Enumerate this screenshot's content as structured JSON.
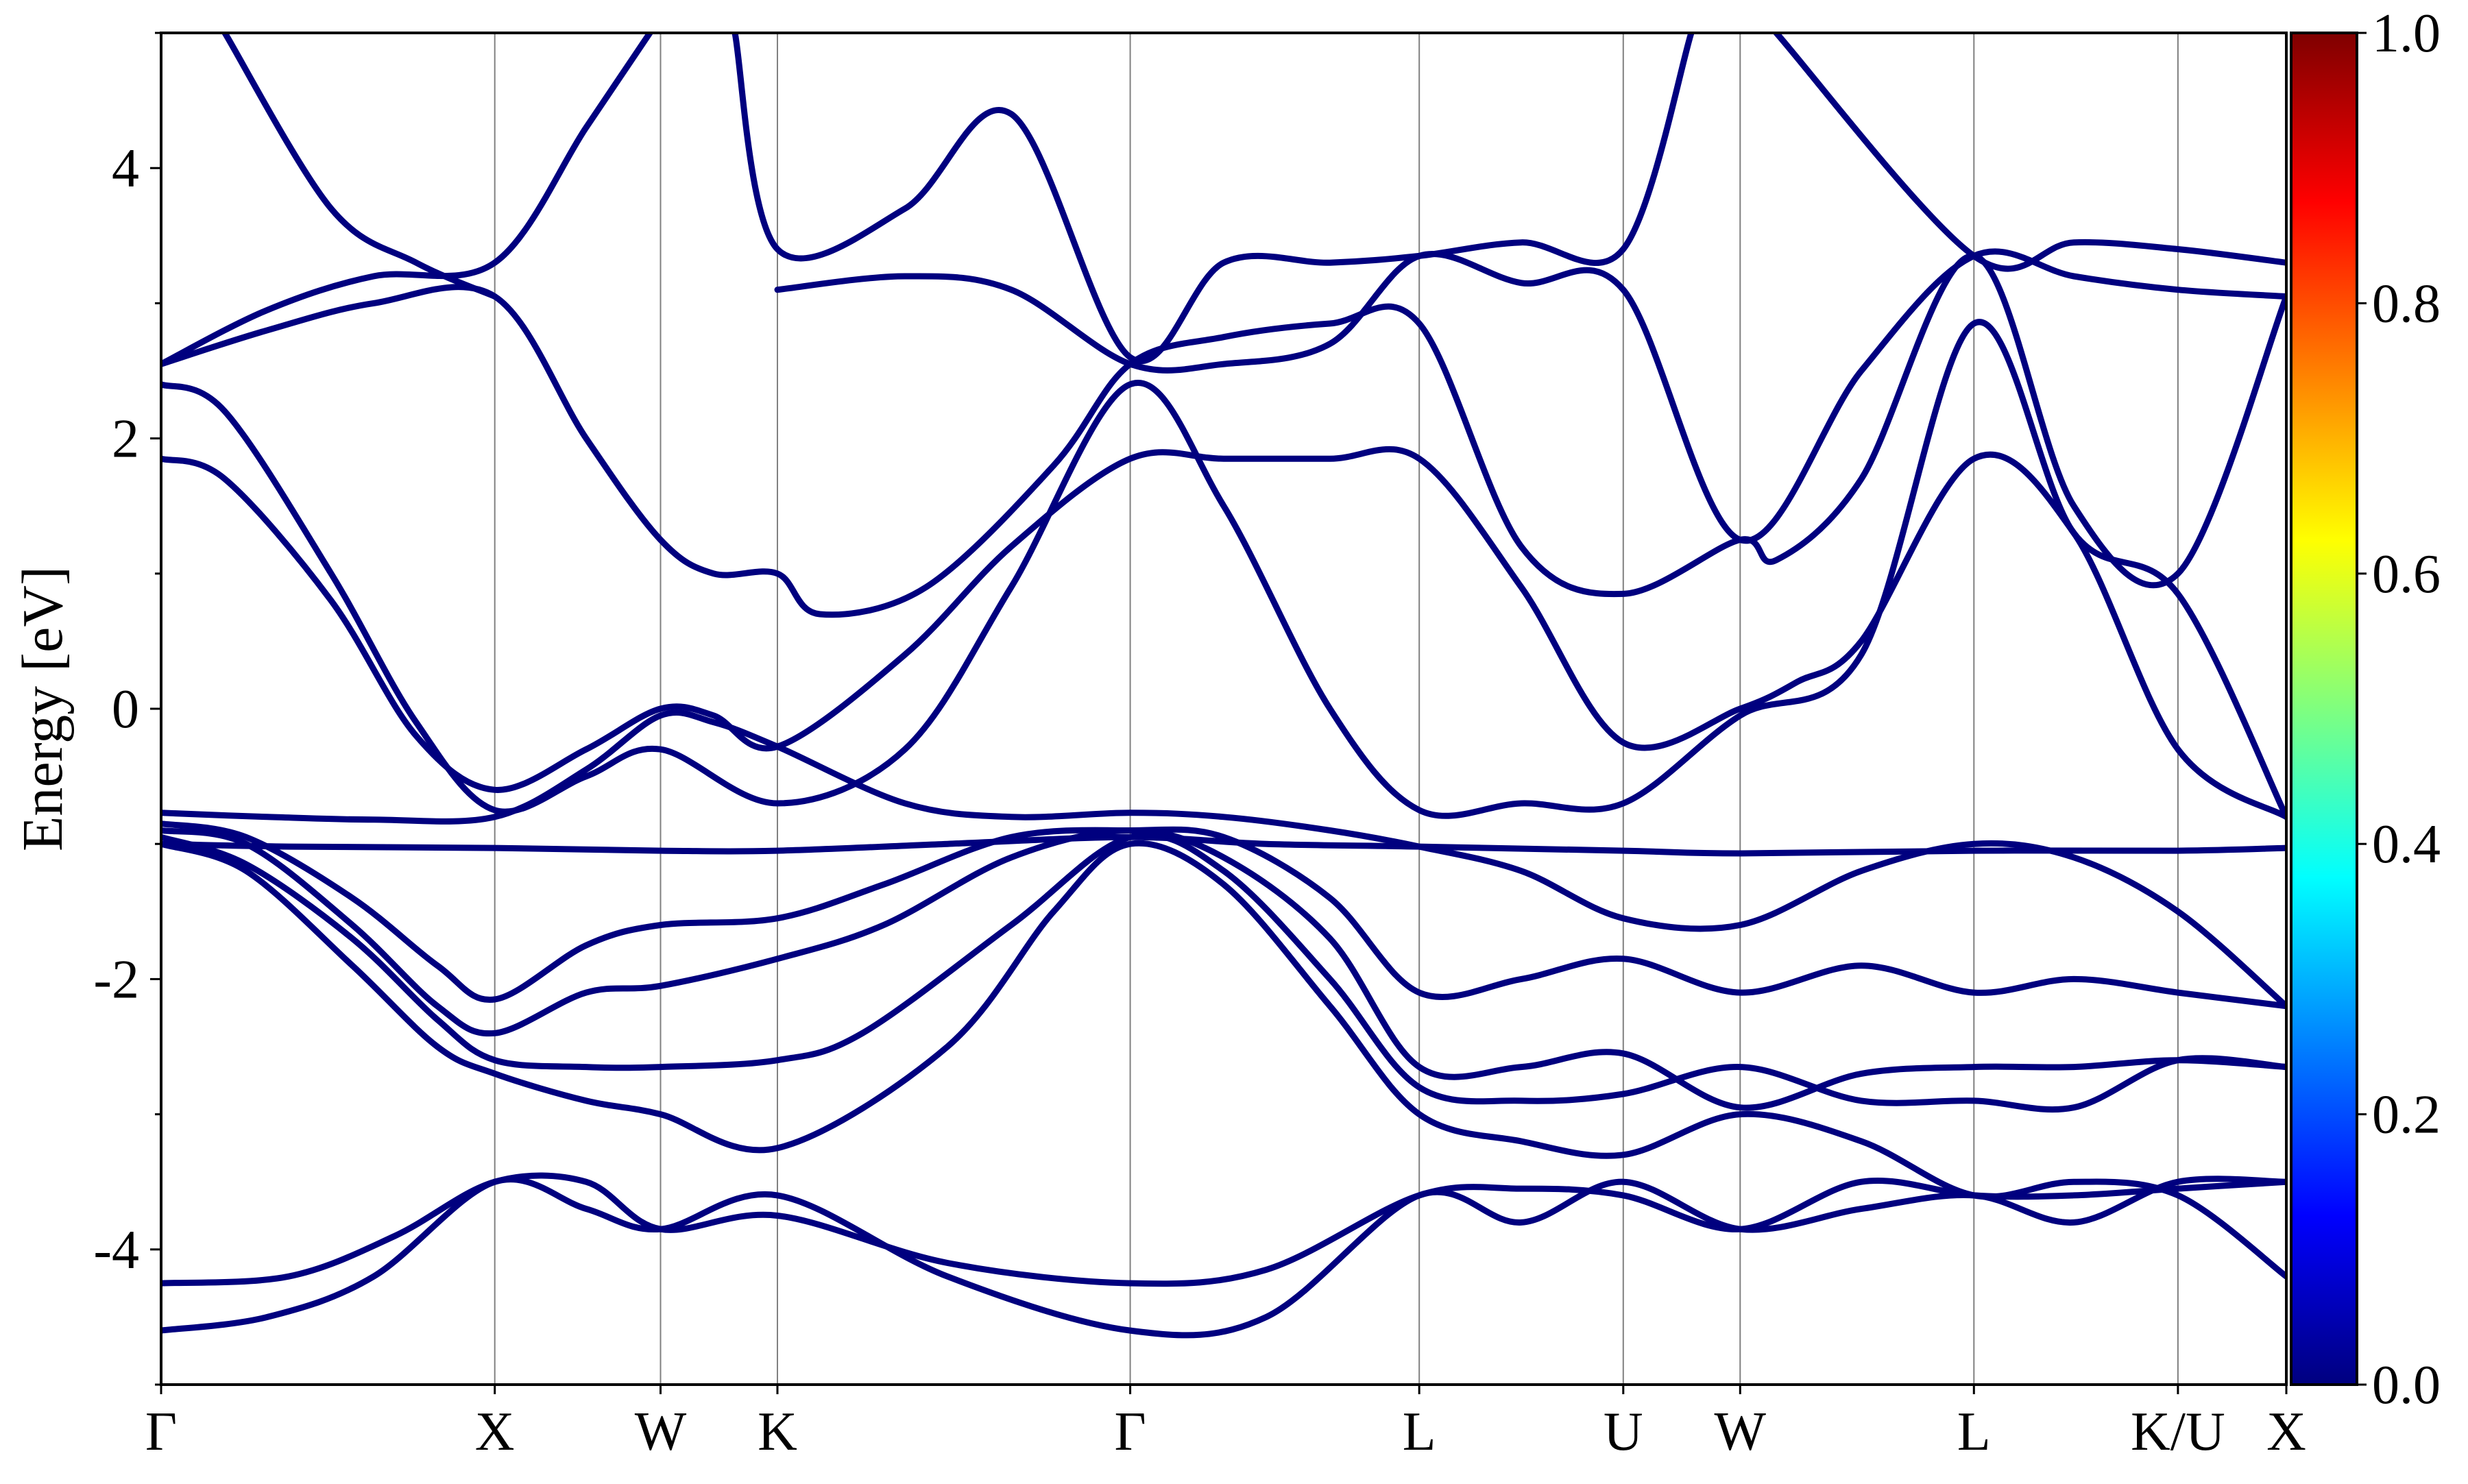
{
  "chart_data": {
    "type": "line",
    "title": "",
    "ylabel": "Energy [eV]",
    "xlabel": "",
    "ylim": [
      -5,
      5
    ],
    "y_ticks": [
      "4",
      "2",
      "0",
      "-2",
      "-4"
    ],
    "grid": "vertical lines at high-symmetry points",
    "kpoints": [
      {
        "label": "Γ",
        "x": 0.0
      },
      {
        "label": "X",
        "x": 0.157
      },
      {
        "label": "W",
        "x": 0.235
      },
      {
        "label": "K",
        "x": 0.29
      },
      {
        "label": "Γ",
        "x": 0.456
      },
      {
        "label": "L",
        "x": 0.592
      },
      {
        "label": "U",
        "x": 0.688
      },
      {
        "label": "W",
        "x": 0.743
      },
      {
        "label": "L",
        "x": 0.853
      },
      {
        "label": "K/U",
        "x": 0.949
      },
      {
        "label": "X",
        "x": 1.0
      }
    ],
    "band_color_value": 0.0,
    "colorbar": {
      "min": 0.0,
      "max": 1.0,
      "ticks": [
        "0.0",
        "0.2",
        "0.4",
        "0.6",
        "0.8",
        "1.0"
      ],
      "colormap": "jet",
      "colors": [
        "#00007f",
        "#0000ff",
        "#007fff",
        "#00ffff",
        "#7fff7f",
        "#ffff00",
        "#ff7f00",
        "#ff0000",
        "#7f0000"
      ]
    },
    "series": [
      {
        "values": [
          [
            0.0,
            -4.6
          ],
          [
            0.05,
            -4.5
          ],
          [
            0.1,
            -4.2
          ],
          [
            0.157,
            -3.5
          ],
          [
            0.2,
            -3.7
          ],
          [
            0.235,
            -3.85
          ],
          [
            0.29,
            -3.6
          ],
          [
            0.37,
            -4.2
          ],
          [
            0.456,
            -4.6
          ],
          [
            0.52,
            -4.5
          ],
          [
            0.592,
            -3.6
          ],
          [
            0.64,
            -3.8
          ],
          [
            0.688,
            -3.5
          ],
          [
            0.743,
            -3.85
          ],
          [
            0.8,
            -3.7
          ],
          [
            0.853,
            -3.6
          ],
          [
            0.9,
            -3.8
          ],
          [
            0.949,
            -3.5
          ],
          [
            1.0,
            -3.5
          ]
        ]
      },
      {
        "values": [
          [
            0.0,
            -4.25
          ],
          [
            0.06,
            -4.2
          ],
          [
            0.11,
            -3.9
          ],
          [
            0.157,
            -3.5
          ],
          [
            0.2,
            -3.5
          ],
          [
            0.235,
            -3.85
          ],
          [
            0.29,
            -3.75
          ],
          [
            0.37,
            -4.1
          ],
          [
            0.456,
            -4.25
          ],
          [
            0.52,
            -4.15
          ],
          [
            0.592,
            -3.6
          ],
          [
            0.64,
            -3.55
          ],
          [
            0.688,
            -3.6
          ],
          [
            0.743,
            -3.85
          ],
          [
            0.8,
            -3.5
          ],
          [
            0.853,
            -3.6
          ],
          [
            0.9,
            -3.6
          ],
          [
            0.949,
            -3.55
          ],
          [
            1.0,
            -3.5
          ]
        ]
      },
      {
        "values": [
          [
            0.0,
            -1.0
          ],
          [
            0.04,
            -1.2
          ],
          [
            0.09,
            -1.9
          ],
          [
            0.13,
            -2.5
          ],
          [
            0.157,
            -2.7
          ],
          [
            0.2,
            -2.9
          ],
          [
            0.235,
            -3.0
          ],
          [
            0.29,
            -3.25
          ],
          [
            0.37,
            -2.5
          ],
          [
            0.42,
            -1.5
          ],
          [
            0.456,
            -1.0
          ],
          [
            0.5,
            -1.3
          ],
          [
            0.55,
            -2.2
          ],
          [
            0.592,
            -3.0
          ],
          [
            0.64,
            -3.2
          ],
          [
            0.688,
            -3.3
          ],
          [
            0.743,
            -3.0
          ],
          [
            0.8,
            -3.2
          ],
          [
            0.853,
            -3.6
          ],
          [
            0.9,
            -3.5
          ],
          [
            0.949,
            -3.6
          ],
          [
            1.0,
            -4.2
          ]
        ]
      },
      {
        "values": [
          [
            0.0,
            -0.95
          ],
          [
            0.04,
            -1.15
          ],
          [
            0.09,
            -1.7
          ],
          [
            0.13,
            -2.3
          ],
          [
            0.157,
            -2.6
          ],
          [
            0.2,
            -2.65
          ],
          [
            0.235,
            -2.65
          ],
          [
            0.29,
            -2.6
          ],
          [
            0.33,
            -2.4
          ],
          [
            0.4,
            -1.6
          ],
          [
            0.456,
            -0.95
          ],
          [
            0.5,
            -1.2
          ],
          [
            0.55,
            -2.0
          ],
          [
            0.592,
            -2.8
          ],
          [
            0.64,
            -2.9
          ],
          [
            0.688,
            -2.85
          ],
          [
            0.743,
            -2.65
          ],
          [
            0.8,
            -2.9
          ],
          [
            0.853,
            -2.9
          ],
          [
            0.9,
            -2.95
          ],
          [
            0.949,
            -2.6
          ],
          [
            1.0,
            -2.65
          ]
        ]
      },
      {
        "values": [
          [
            0.0,
            -0.9
          ],
          [
            0.04,
            -1.0
          ],
          [
            0.09,
            -1.6
          ],
          [
            0.13,
            -2.2
          ],
          [
            0.157,
            -2.4
          ],
          [
            0.2,
            -2.1
          ],
          [
            0.235,
            -2.05
          ],
          [
            0.29,
            -1.85
          ],
          [
            0.34,
            -1.6
          ],
          [
            0.4,
            -1.1
          ],
          [
            0.456,
            -0.9
          ],
          [
            0.5,
            -1.1
          ],
          [
            0.55,
            -1.7
          ],
          [
            0.592,
            -2.65
          ],
          [
            0.64,
            -2.65
          ],
          [
            0.688,
            -2.55
          ],
          [
            0.743,
            -2.95
          ],
          [
            0.8,
            -2.7
          ],
          [
            0.853,
            -2.65
          ],
          [
            0.9,
            -2.65
          ],
          [
            0.949,
            -2.6
          ],
          [
            1.0,
            -2.65
          ]
        ]
      },
      {
        "values": [
          [
            0.0,
            -0.85
          ],
          [
            0.04,
            -0.95
          ],
          [
            0.09,
            -1.4
          ],
          [
            0.13,
            -1.9
          ],
          [
            0.157,
            -2.15
          ],
          [
            0.2,
            -1.75
          ],
          [
            0.235,
            -1.6
          ],
          [
            0.29,
            -1.55
          ],
          [
            0.34,
            -1.3
          ],
          [
            0.4,
            -0.95
          ],
          [
            0.456,
            -0.9
          ],
          [
            0.5,
            -0.95
          ],
          [
            0.55,
            -1.4
          ],
          [
            0.592,
            -2.1
          ],
          [
            0.64,
            -2.0
          ],
          [
            0.688,
            -1.85
          ],
          [
            0.743,
            -2.1
          ],
          [
            0.8,
            -1.9
          ],
          [
            0.853,
            -2.1
          ],
          [
            0.9,
            -2.0
          ],
          [
            0.949,
            -2.1
          ],
          [
            1.0,
            -2.2
          ]
        ]
      },
      {
        "values": [
          [
            0.0,
            -0.77
          ],
          [
            0.05,
            -0.8
          ],
          [
            0.1,
            -0.82
          ],
          [
            0.157,
            -0.8
          ],
          [
            0.2,
            -0.45
          ],
          [
            0.235,
            -0.05
          ],
          [
            0.26,
            -0.1
          ],
          [
            0.29,
            -0.28
          ],
          [
            0.35,
            -0.7
          ],
          [
            0.4,
            -0.8
          ],
          [
            0.456,
            -0.77
          ],
          [
            0.5,
            -0.8
          ],
          [
            0.55,
            -0.9
          ],
          [
            0.592,
            -1.02
          ],
          [
            0.64,
            -1.2
          ],
          [
            0.688,
            -1.55
          ],
          [
            0.743,
            -1.6
          ],
          [
            0.8,
            -1.2
          ],
          [
            0.853,
            -1.0
          ],
          [
            0.9,
            -1.1
          ],
          [
            0.949,
            -1.5
          ],
          [
            1.0,
            -2.2
          ]
        ]
      },
      {
        "values": [
          [
            0.0,
            -1.0
          ],
          [
            0.06,
            -1.02
          ],
          [
            0.157,
            -1.03
          ],
          [
            0.235,
            -1.05
          ],
          [
            0.29,
            -1.05
          ],
          [
            0.37,
            -1.0
          ],
          [
            0.456,
            -0.95
          ],
          [
            0.52,
            -1.0
          ],
          [
            0.592,
            -1.02
          ],
          [
            0.688,
            -1.05
          ],
          [
            0.743,
            -1.07
          ],
          [
            0.853,
            -1.05
          ],
          [
            0.949,
            -1.05
          ],
          [
            1.0,
            -1.03
          ]
        ]
      },
      {
        "values": [
          [
            0.0,
            1.85
          ],
          [
            0.03,
            1.7
          ],
          [
            0.08,
            0.8
          ],
          [
            0.12,
            -0.2
          ],
          [
            0.157,
            -0.6
          ],
          [
            0.2,
            -0.3
          ],
          [
            0.235,
            0.0
          ],
          [
            0.26,
            -0.05
          ],
          [
            0.29,
            -0.28
          ],
          [
            0.35,
            0.4
          ],
          [
            0.4,
            1.2
          ],
          [
            0.456,
            1.85
          ],
          [
            0.5,
            1.85
          ],
          [
            0.55,
            1.85
          ],
          [
            0.592,
            1.85
          ],
          [
            0.64,
            0.9
          ],
          [
            0.688,
            -0.25
          ],
          [
            0.743,
            0.0
          ],
          [
            0.77,
            0.2
          ],
          [
            0.8,
            0.5
          ],
          [
            0.853,
            1.85
          ],
          [
            0.9,
            1.3
          ],
          [
            0.949,
            -0.3
          ],
          [
            1.0,
            -0.8
          ]
        ]
      },
      {
        "values": [
          [
            0.0,
            2.4
          ],
          [
            0.03,
            2.2
          ],
          [
            0.08,
            1.0
          ],
          [
            0.12,
            -0.1
          ],
          [
            0.157,
            -0.75
          ],
          [
            0.2,
            -0.5
          ],
          [
            0.235,
            -0.3
          ],
          [
            0.29,
            -0.7
          ],
          [
            0.35,
            -0.3
          ],
          [
            0.4,
            0.9
          ],
          [
            0.456,
            2.4
          ],
          [
            0.5,
            1.5
          ],
          [
            0.55,
            0.0
          ],
          [
            0.592,
            -0.75
          ],
          [
            0.64,
            -0.7
          ],
          [
            0.688,
            -0.7
          ],
          [
            0.743,
            -0.05
          ],
          [
            0.8,
            0.4
          ],
          [
            0.853,
            2.85
          ],
          [
            0.9,
            1.3
          ],
          [
            0.949,
            0.85
          ],
          [
            1.0,
            -0.8
          ]
        ]
      },
      {
        "values": [
          [
            0.0,
            2.55
          ],
          [
            0.05,
            2.8
          ],
          [
            0.1,
            3.0
          ],
          [
            0.157,
            3.05
          ],
          [
            0.2,
            2.0
          ],
          [
            0.235,
            1.25
          ],
          [
            0.26,
            1.0
          ],
          [
            0.29,
            1.0
          ],
          [
            0.31,
            0.7
          ],
          [
            0.36,
            0.9
          ],
          [
            0.42,
            1.8
          ],
          [
            0.456,
            2.55
          ],
          [
            0.5,
            2.75
          ],
          [
            0.55,
            2.85
          ],
          [
            0.592,
            2.85
          ],
          [
            0.64,
            1.2
          ],
          [
            0.688,
            0.85
          ],
          [
            0.743,
            1.25
          ],
          [
            0.76,
            1.1
          ],
          [
            0.8,
            1.7
          ],
          [
            0.853,
            3.35
          ],
          [
            0.9,
            1.5
          ],
          [
            0.949,
            1.0
          ],
          [
            1.0,
            3.05
          ]
        ]
      },
      {
        "values": [
          [
            0.0,
            2.55
          ],
          [
            0.05,
            2.95
          ],
          [
            0.1,
            3.2
          ],
          [
            0.157,
            3.3
          ],
          [
            0.2,
            4.3
          ],
          [
            0.23,
            5.0
          ]
        ]
      },
      {
        "values": [
          [
            0.27,
            5.0
          ],
          [
            0.29,
            3.4
          ],
          [
            0.35,
            3.7
          ],
          [
            0.4,
            4.4
          ],
          [
            0.456,
            2.6
          ],
          [
            0.5,
            3.3
          ],
          [
            0.55,
            3.3
          ],
          [
            0.592,
            3.35
          ],
          [
            0.64,
            3.45
          ],
          [
            0.688,
            3.4
          ],
          [
            0.72,
            5.0
          ]
        ]
      },
      {
        "values": [
          [
            0.29,
            3.1
          ],
          [
            0.35,
            3.2
          ],
          [
            0.4,
            3.1
          ],
          [
            0.456,
            2.55
          ],
          [
            0.5,
            2.55
          ],
          [
            0.55,
            2.7
          ],
          [
            0.592,
            3.35
          ],
          [
            0.64,
            3.15
          ],
          [
            0.688,
            3.1
          ],
          [
            0.743,
            1.25
          ],
          [
            0.8,
            2.5
          ],
          [
            0.853,
            3.35
          ],
          [
            0.9,
            3.2
          ],
          [
            0.949,
            3.1
          ],
          [
            1.0,
            3.05
          ]
        ]
      },
      {
        "values": [
          [
            0.03,
            5.0
          ],
          [
            0.08,
            3.7
          ],
          [
            0.12,
            3.3
          ],
          [
            0.157,
            3.05
          ]
        ]
      },
      {
        "values": [
          [
            0.76,
            5.0
          ],
          [
            0.853,
            3.35
          ],
          [
            0.9,
            3.45
          ],
          [
            0.949,
            3.4
          ],
          [
            1.0,
            3.3
          ]
        ]
      }
    ]
  }
}
